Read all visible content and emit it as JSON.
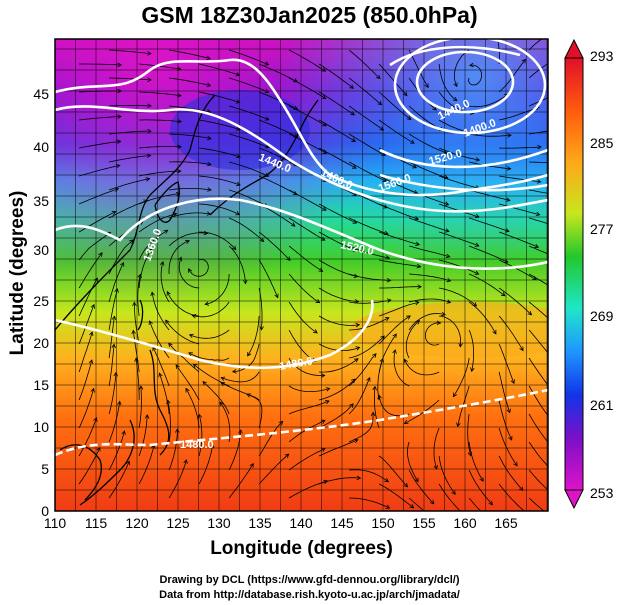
{
  "title": "GSM 18Z30Jan2025 (850.0hPa)",
  "axes": {
    "xlabel": "Longitude (degrees)",
    "ylabel": "Latitude  (degrees)",
    "x_ticks": [
      "110",
      "115",
      "120",
      "125",
      "130",
      "135",
      "140",
      "145",
      "150",
      "155",
      "160",
      "165"
    ],
    "y_ticks": [
      "0",
      "5",
      "10",
      "15",
      "20",
      "25",
      "30",
      "35",
      "40",
      "45"
    ]
  },
  "colorbar": {
    "labels": [
      "293",
      "285",
      "277",
      "269",
      "261",
      "253"
    ],
    "colors": [
      "#e0102a",
      "#ff5a0e",
      "#ffa71a",
      "#c8e61e",
      "#22c82c",
      "#20e6c8",
      "#1e96ff",
      "#1234e6",
      "#7a10c8",
      "#e012c8"
    ]
  },
  "contour_labels": [
    "1440.0",
    "1400.0",
    "1480.0",
    "1480.0",
    "1520.0",
    "1520.0",
    "1560.0",
    "1440.0",
    "1400.0",
    "1360.0"
  ],
  "credits": {
    "line1": "Drawing by DCL (https://www.gfd-dennou.org/library/dcl/)",
    "line2": "Data from http://database.rish.kyoto-u.ac.jp/arch/jmadata/"
  }
}
